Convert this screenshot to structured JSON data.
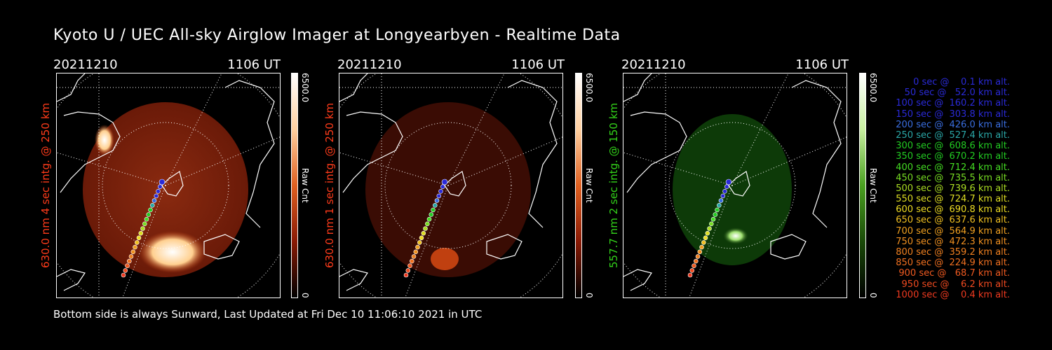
{
  "title": "Kyoto U / UEC All-sky Airglow Imager at Longyearbyen - Realtime Data",
  "footer": "Bottom side is always Sunward, Last Updated at Fri Dec 10 11:06:10 2021 in UTC",
  "panels": [
    {
      "date": "20211210",
      "time": "1106 UT",
      "ylabel": "630.0 nm 4 sec intg. @ 250 km",
      "label_color": "#ff3b1a",
      "cbar_max": "6500.0",
      "cbar_min": "0",
      "cbar_unit": "Raw Cnt",
      "colormap": "red"
    },
    {
      "date": "20211210",
      "time": "1106 UT",
      "ylabel": "630.0 nm 1 sec intg. @ 250 km",
      "label_color": "#ff3b1a",
      "cbar_max": "6500.0",
      "cbar_min": "0",
      "cbar_unit": "Raw Cnt",
      "colormap": "red"
    },
    {
      "date": "20211210",
      "time": "1106 UT",
      "ylabel": "557.7 nm 2 sec intg. @ 150 km",
      "label_color": "#33d41a",
      "cbar_max": "6500.0",
      "cbar_min": "0",
      "cbar_unit": "Raw Cnt",
      "colormap": "green"
    }
  ],
  "legend": [
    {
      "text": "   0 sec @    0.1 km alt.",
      "color": "#2a2ad8"
    },
    {
      "text": "  50 sec @   52.0 km alt.",
      "color": "#2a2ad8"
    },
    {
      "text": " 100 sec @  160.2 km alt.",
      "color": "#2a2ad8"
    },
    {
      "text": " 150 sec @  303.8 km alt.",
      "color": "#2a2ad8"
    },
    {
      "text": " 200 sec @  426.0 km alt.",
      "color": "#3a6ee0"
    },
    {
      "text": " 250 sec @  527.4 km alt.",
      "color": "#2aa7a7"
    },
    {
      "text": " 300 sec @  608.6 km alt.",
      "color": "#22cc22"
    },
    {
      "text": " 350 sec @  670.2 km alt.",
      "color": "#22cc22"
    },
    {
      "text": " 400 sec @  712.4 km alt.",
      "color": "#44dd22"
    },
    {
      "text": " 450 sec @  735.5 km alt.",
      "color": "#77dd22"
    },
    {
      "text": " 500 sec @  739.6 km alt.",
      "color": "#aadd22"
    },
    {
      "text": " 550 sec @  724.7 km alt.",
      "color": "#dddd22"
    },
    {
      "text": " 600 sec @  690.8 km alt.",
      "color": "#eedd22"
    },
    {
      "text": " 650 sec @  637.6 km alt.",
      "color": "#f0c020"
    },
    {
      "text": " 700 sec @  564.9 km alt.",
      "color": "#f0a020"
    },
    {
      "text": " 750 sec @  472.3 km alt.",
      "color": "#f09020"
    },
    {
      "text": " 800 sec @  359.2 km alt.",
      "color": "#f08020"
    },
    {
      "text": " 850 sec @  224.9 km alt.",
      "color": "#f07020"
    },
    {
      "text": " 900 sec @   68.7 km alt.",
      "color": "#f05a20"
    },
    {
      "text": " 950 sec @    6.2 km alt.",
      "color": "#f04a20"
    },
    {
      "text": "1000 sec @    0.4 km alt.",
      "color": "#f03a20"
    }
  ]
}
